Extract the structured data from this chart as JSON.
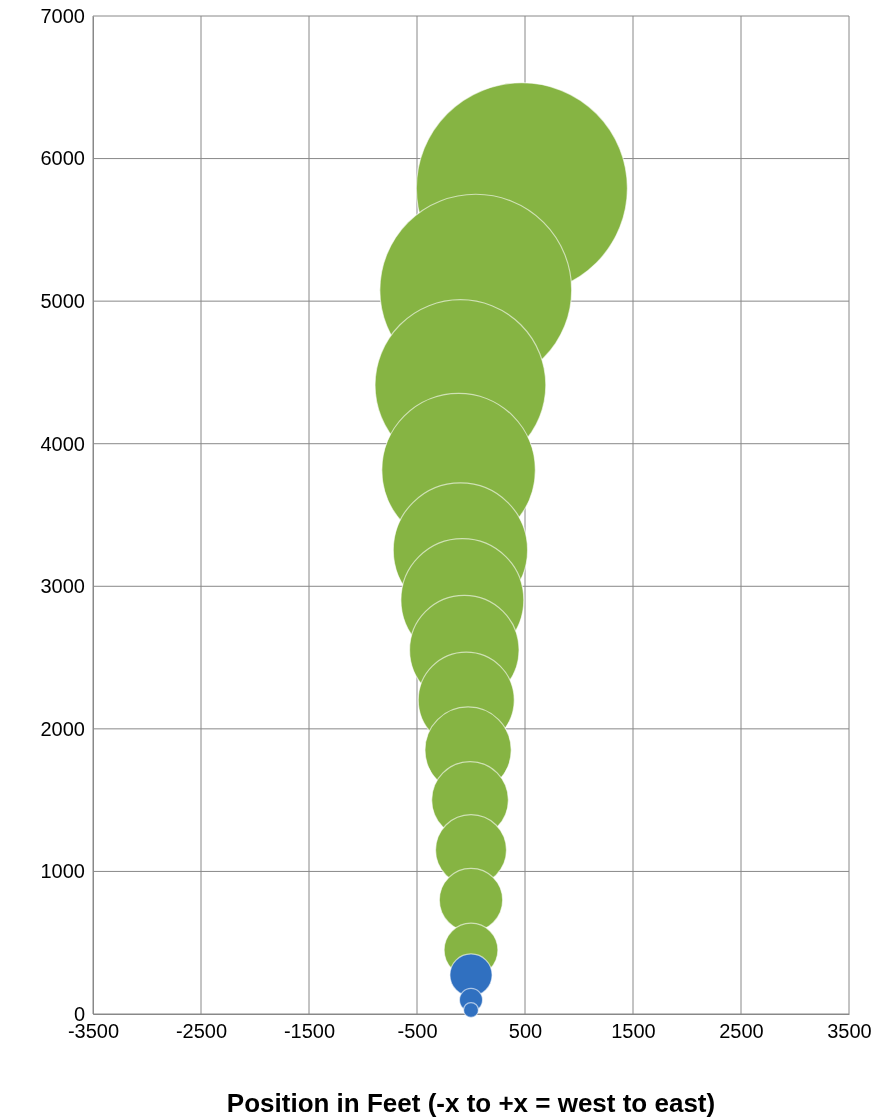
{
  "chart_data": {
    "type": "bubble",
    "xlabel": "Position in Feet (-x to +x = west to east)",
    "xlim": [
      -3500,
      3500
    ],
    "xticks": [
      -3500,
      -2500,
      -1500,
      -500,
      500,
      1500,
      2500,
      3500
    ],
    "ylim": [
      0,
      7000
    ],
    "yticks": [
      0,
      1000,
      2000,
      3000,
      4000,
      5000,
      6000,
      7000
    ],
    "grid": true,
    "series": [
      {
        "color": "#86b443",
        "x": [
          null,
          0,
          0,
          0,
          -9,
          -27,
          -44,
          -62,
          -80,
          -98,
          -115,
          -98,
          44,
          471
        ],
        "values": [
          null,
          449,
          799,
          1150,
          1501,
          1851,
          2202,
          2553,
          2903,
          3254,
          3815,
          4411,
          5077,
          5792
        ],
        "sizes": [
          null,
          0.065,
          0.09,
          0.113,
          0.132,
          0.167,
          0.207,
          0.269,
          0.339,
          0.405,
          0.529,
          0.655,
          0.826,
          1
        ]
      },
      {
        "color": "#3070c0",
        "x": [
          0,
          0,
          0
        ],
        "values": [
          273,
          98,
          28
        ],
        "sizes": [
          0.04,
          0.012,
          0.005
        ]
      }
    ]
  }
}
